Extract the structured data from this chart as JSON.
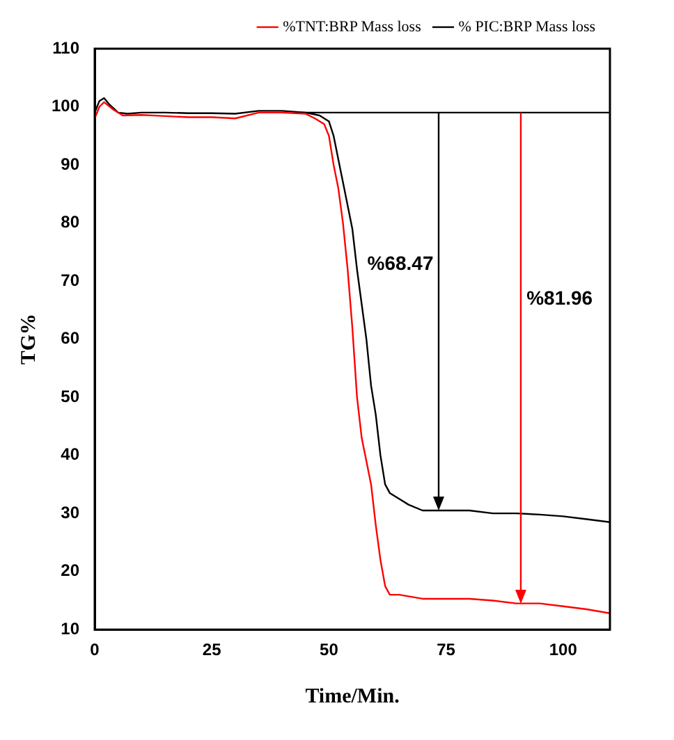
{
  "chart_data": {
    "type": "line",
    "xlabel": "Time/Min.",
    "ylabel": "TG%",
    "xlim": [
      0,
      110
    ],
    "ylim": [
      10,
      110
    ],
    "xticks": [
      0,
      25,
      50,
      75,
      100
    ],
    "yticks": [
      10,
      20,
      30,
      40,
      50,
      60,
      70,
      80,
      90,
      100,
      110
    ],
    "grid": false,
    "legend": "top right",
    "marker": "none",
    "line_style": "solid",
    "series": [
      {
        "name": "%TNT:BRP Mass loss",
        "color": "#ff0000",
        "x": [
          0,
          1,
          2,
          4,
          6,
          10,
          15,
          20,
          25,
          30,
          35,
          40,
          45,
          47,
          49,
          50,
          51,
          52,
          53,
          54,
          55,
          56,
          57,
          58,
          59,
          60,
          61,
          62,
          63,
          65,
          70,
          75,
          80,
          85,
          90,
          95,
          100,
          105,
          110
        ],
        "values": [
          98,
          100,
          100.8,
          99.5,
          98.5,
          98.6,
          98.4,
          98.2,
          98.2,
          98,
          99,
          99,
          98.8,
          98,
          97,
          95,
          90,
          86,
          80,
          72,
          62,
          50,
          43,
          39,
          35,
          28,
          22,
          17.5,
          16,
          16,
          15.3,
          15.3,
          15.3,
          15,
          14.5,
          14.5,
          14,
          13.5,
          12.8
        ]
      },
      {
        "name": "% PIC:BRP Mass loss",
        "color": "#000000",
        "x": [
          0,
          1,
          2,
          3,
          5,
          7,
          10,
          15,
          20,
          25,
          30,
          35,
          40,
          45,
          48,
          50,
          51,
          52,
          53,
          54,
          55,
          56,
          57,
          58,
          59,
          60,
          61,
          62,
          63,
          65,
          67,
          70,
          73,
          75,
          80,
          85,
          90,
          95,
          100,
          105,
          110
        ],
        "values": [
          99,
          101,
          101.5,
          100.5,
          99,
          98.8,
          99,
          99,
          98.9,
          98.9,
          98.8,
          99.3,
          99.3,
          99,
          98.5,
          97.5,
          95,
          91,
          87,
          83,
          79,
          72,
          66,
          60,
          52,
          47,
          40,
          35,
          33.5,
          32.5,
          31.5,
          30.5,
          30.5,
          30.5,
          30.5,
          30,
          30,
          29.8,
          29.5,
          29,
          28.5
        ]
      },
      {
        "type": "line",
        "color": "#000000",
        "x": [
          44,
          110
        ],
        "values": [
          99,
          99
        ]
      }
    ],
    "ref_lines": [
      {
        "axis": "x",
        "value": 73.5,
        "color": "#000000"
      },
      {
        "axis": "x",
        "value": 91,
        "color": "#ff0000"
      }
    ],
    "annotations": [
      "%68.47",
      "%81.96"
    ]
  }
}
